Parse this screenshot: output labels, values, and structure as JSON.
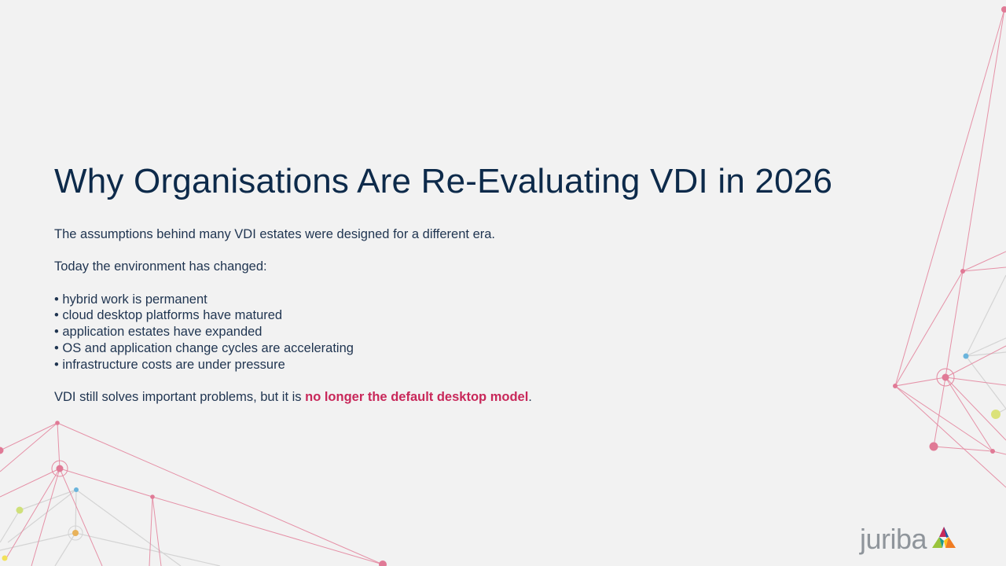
{
  "slide": {
    "title": "Why Organisations Are Re-Evaluating VDI in 2026",
    "intro": "The assumptions behind many VDI estates were designed for a different era.",
    "subheading": "Today the environment has changed:",
    "bullets": [
      "hybrid work is permanent",
      "cloud desktop platforms have matured",
      "application estates have expanded",
      "OS and application change cycles are accelerating",
      "infrastructure costs are under pressure"
    ],
    "conclusion_prefix": "VDI still solves important problems, but it is ",
    "conclusion_highlight": "no longer the default desktop model",
    "conclusion_suffix": "."
  },
  "logo": {
    "text": "juriba"
  },
  "colors": {
    "background": "#f2f2f2",
    "title": "#0d2a4a",
    "body_text": "#1f3450",
    "highlight": "#c8285a",
    "network_pink": "#e4879f",
    "network_grey": "#d0d0d0",
    "logo_grey": "#8f959b"
  }
}
